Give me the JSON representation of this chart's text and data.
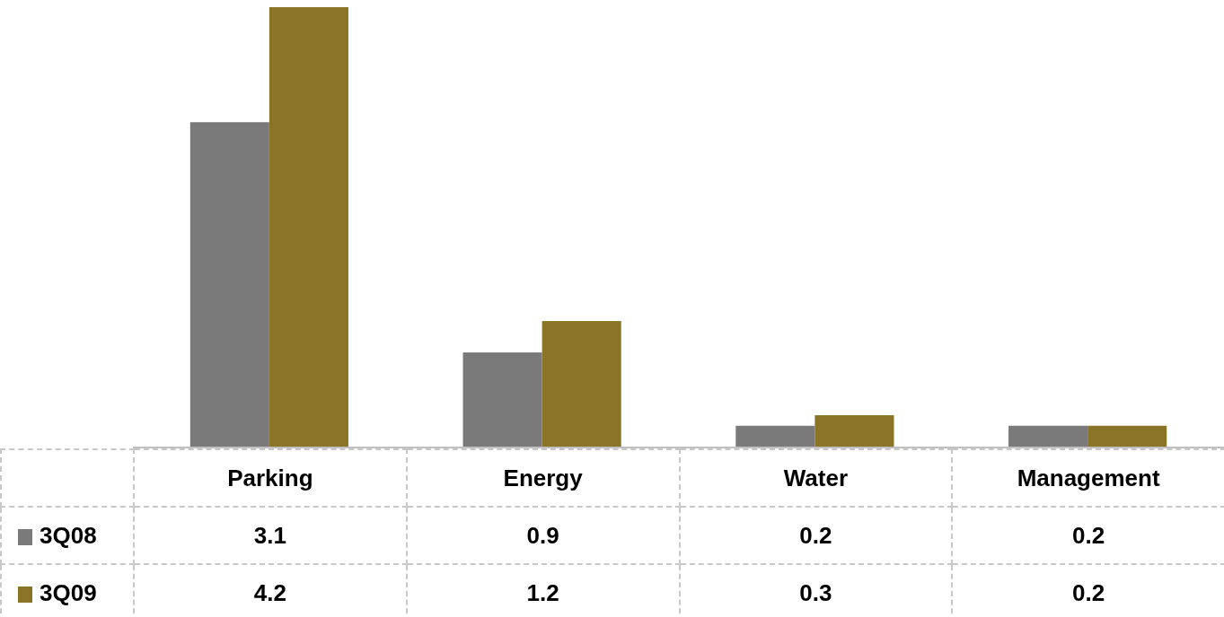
{
  "chart_data": {
    "type": "bar",
    "categories": [
      "Parking",
      "Energy",
      "Water",
      "Management"
    ],
    "series": [
      {
        "name": "3Q08",
        "color": "#7a7a7a",
        "values": [
          3.1,
          0.9,
          0.2,
          0.2
        ]
      },
      {
        "name": "3Q09",
        "color": "#8a7428",
        "values": [
          4.2,
          1.2,
          0.3,
          0.2
        ]
      }
    ],
    "data_labels": true,
    "grid": false,
    "legend": "bottom left"
  }
}
